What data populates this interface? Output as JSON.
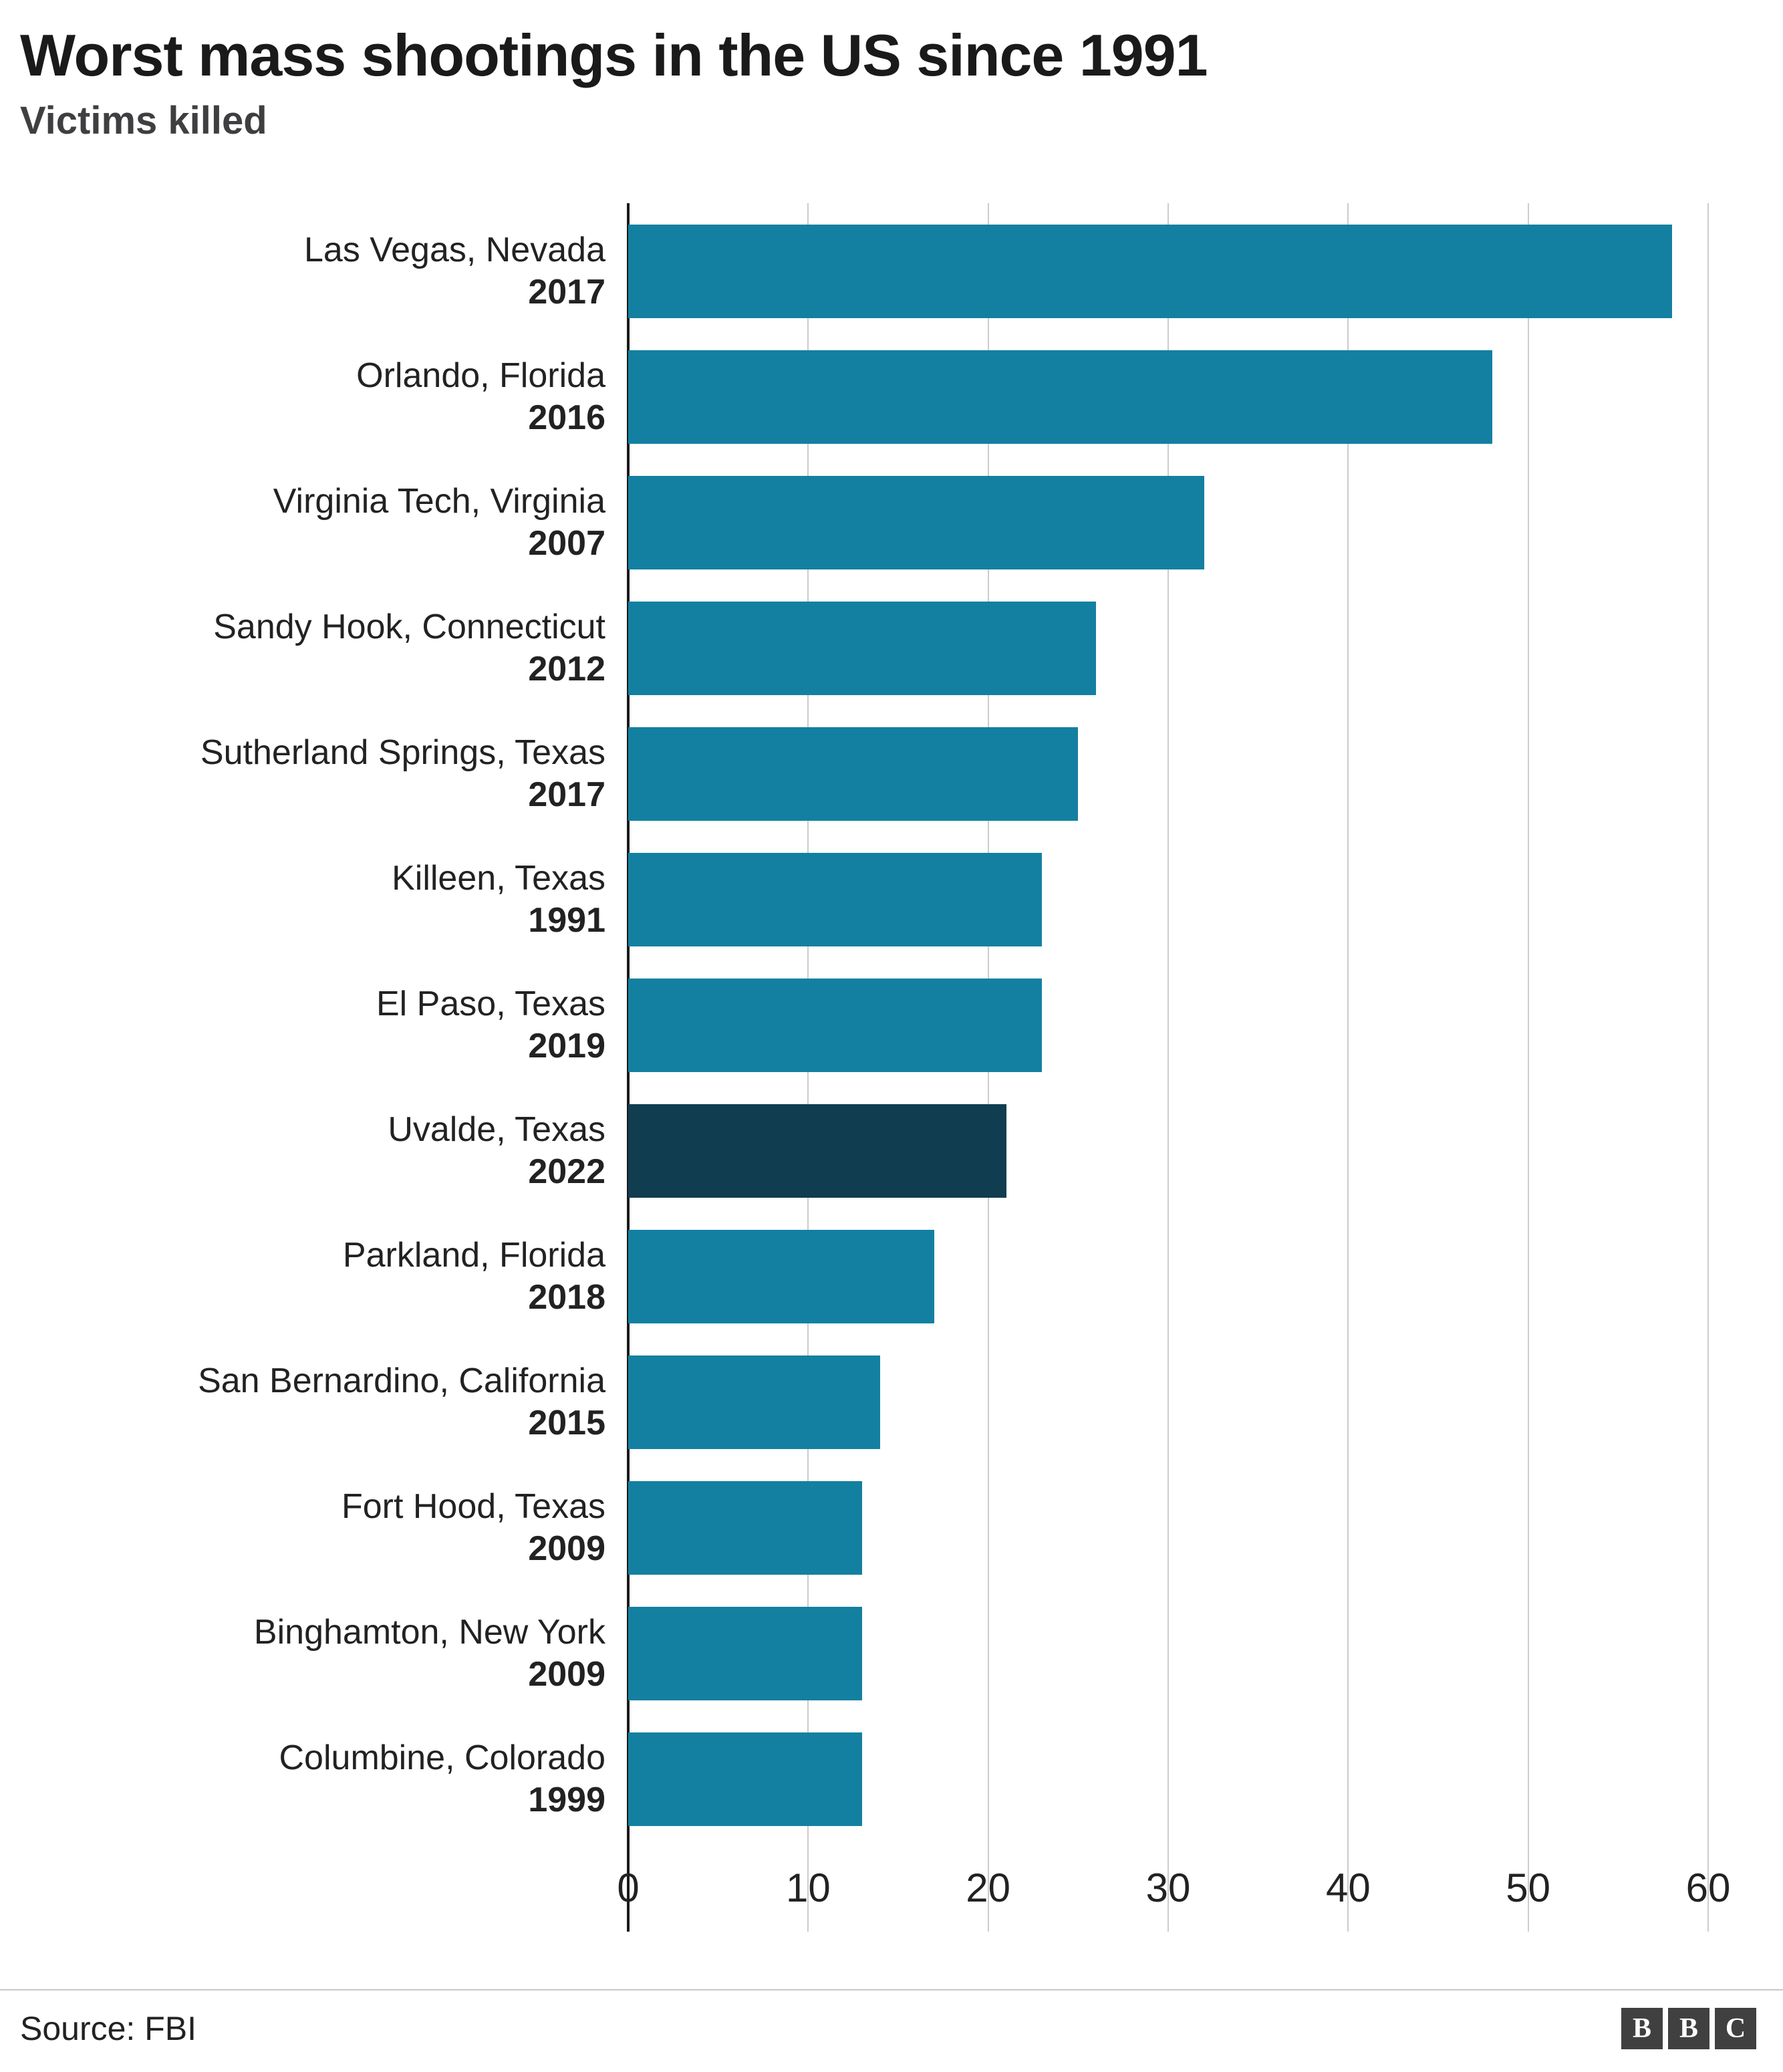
{
  "header": {
    "title": "Worst mass shootings in the US since 1991",
    "subtitle": "Victims killed"
  },
  "footer": {
    "source": "Source: FBI",
    "logo_letters": [
      "B",
      "B",
      "C"
    ]
  },
  "chart_data": {
    "type": "bar",
    "orientation": "horizontal",
    "title": "Worst mass shootings in the US since 1991",
    "subtitle": "Victims killed",
    "xlabel": "",
    "ylabel": "Victims killed",
    "xlim": [
      0,
      60
    ],
    "xticks": [
      0,
      10,
      20,
      30,
      40,
      50,
      60
    ],
    "grid": "vertical",
    "bar_color": "#1380A1",
    "highlight_color": "#113D51",
    "highlight_index": 7,
    "categories": [
      {
        "location": "Las Vegas, Nevada",
        "year": "2017"
      },
      {
        "location": "Orlando, Florida",
        "year": "2016"
      },
      {
        "location": "Virginia Tech, Virginia",
        "year": "2007"
      },
      {
        "location": "Sandy Hook, Connecticut",
        "year": "2012"
      },
      {
        "location": "Sutherland Springs, Texas",
        "year": "2017"
      },
      {
        "location": "Killeen, Texas",
        "year": "1991"
      },
      {
        "location": "El Paso, Texas",
        "year": "2019"
      },
      {
        "location": "Uvalde, Texas",
        "year": "2022"
      },
      {
        "location": "Parkland, Florida",
        "year": "2018"
      },
      {
        "location": "San Bernardino, California",
        "year": "2015"
      },
      {
        "location": "Fort Hood, Texas",
        "year": "2009"
      },
      {
        "location": "Binghamton, New York",
        "year": "2009"
      },
      {
        "location": "Columbine, Colorado",
        "year": "1999"
      }
    ],
    "values": [
      58,
      48,
      32,
      26,
      25,
      23,
      23,
      21,
      17,
      14,
      13,
      13,
      13
    ]
  }
}
